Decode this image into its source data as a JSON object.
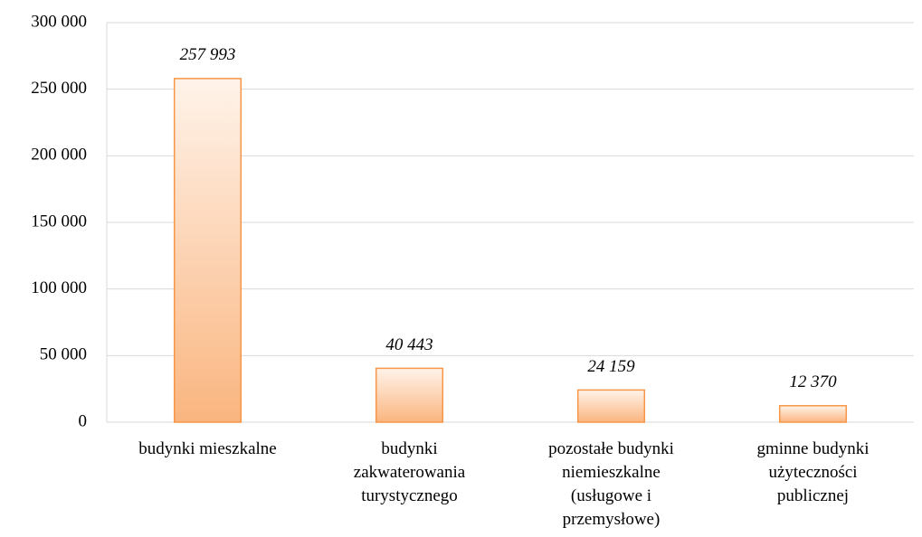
{
  "chart_data": {
    "type": "bar",
    "categories": [
      "budynki mieszkalne",
      "budynki zakwaterowania turystycznego",
      "pozostałe budynki niemieszkalne (usługowe i przemysłowe)",
      "gminne budynki użyteczności publicznej"
    ],
    "values": [
      257993,
      40443,
      24159,
      12370
    ],
    "value_labels": [
      "257 993",
      "40 443",
      "24 159",
      "12 370"
    ],
    "color": "#f79646",
    "ylim": [
      0,
      300000
    ],
    "yticks": [
      {
        "value": 0,
        "label": "0"
      },
      {
        "value": 50000,
        "label": "50 000"
      },
      {
        "value": 100000,
        "label": "100 000"
      },
      {
        "value": 150000,
        "label": "150 000"
      },
      {
        "value": 200000,
        "label": "200 000"
      },
      {
        "value": 250000,
        "label": "250 000"
      },
      {
        "value": 300000,
        "label": "300 000"
      }
    ],
    "grid": true
  }
}
